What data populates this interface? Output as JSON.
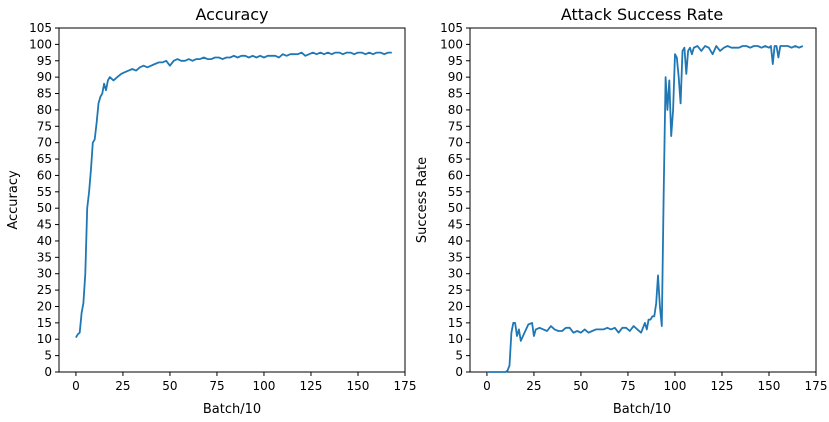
{
  "colors": {
    "line": "#1f77b4",
    "axes": "#000000",
    "background": "#ffffff"
  },
  "chart_data": [
    {
      "type": "line",
      "title": "Accuracy",
      "xlabel": "Batch/10",
      "ylabel": "Accuracy",
      "xlim": [
        -9,
        175
      ],
      "ylim": [
        0,
        105
      ],
      "xticks": [
        "0",
        "25",
        "50",
        "75",
        "100",
        "125",
        "150",
        "175"
      ],
      "yticks": [
        "0",
        "5",
        "10",
        "15",
        "20",
        "25",
        "30",
        "35",
        "40",
        "45",
        "50",
        "55",
        "60",
        "65",
        "70",
        "75",
        "80",
        "85",
        "90",
        "95",
        "100",
        "105"
      ],
      "grid": false,
      "series": [
        {
          "x": [
            0,
            1,
            2,
            3,
            4,
            5,
            6,
            7,
            8,
            9,
            10,
            11,
            12,
            13,
            14,
            15,
            16,
            17,
            18,
            19,
            20,
            22,
            24,
            26,
            28,
            30,
            32,
            34,
            36,
            38,
            40,
            42,
            44,
            46,
            48,
            50,
            52,
            54,
            56,
            58,
            60,
            62,
            64,
            66,
            68,
            70,
            72,
            74,
            76,
            78,
            80,
            82,
            84,
            86,
            88,
            90,
            92,
            94,
            96,
            98,
            100,
            102,
            104,
            106,
            108,
            110,
            112,
            114,
            116,
            118,
            120,
            122,
            124,
            126,
            128,
            130,
            132,
            134,
            136,
            138,
            140,
            142,
            144,
            146,
            148,
            150,
            152,
            154,
            156,
            158,
            160,
            162,
            164,
            166,
            168
          ],
          "y": [
            10.5,
            11.5,
            12,
            18,
            21,
            30,
            50,
            55,
            62,
            70,
            71,
            76,
            82,
            84,
            85,
            88,
            86,
            89,
            90,
            89.5,
            89,
            90,
            91,
            91.5,
            92,
            92.5,
            92,
            93,
            93.5,
            93,
            93.5,
            94,
            94.5,
            94.5,
            95,
            93.5,
            95,
            95.5,
            95,
            95,
            95.5,
            95,
            95.5,
            95.5,
            96,
            95.5,
            95.5,
            96,
            96,
            95.5,
            96,
            96,
            96.5,
            96,
            96.5,
            96.5,
            96,
            96.5,
            96,
            96.5,
            96,
            96.5,
            96.5,
            96.5,
            96,
            97,
            96.5,
            97,
            97,
            97,
            97.5,
            96.5,
            97,
            97.5,
            97,
            97.5,
            97,
            97.5,
            97,
            97.5,
            97.5,
            97,
            97.5,
            97.5,
            97,
            97.5,
            97.5,
            97,
            97.5,
            97,
            97.5,
            97.5,
            97,
            97.5,
            97.5
          ]
        }
      ]
    },
    {
      "type": "line",
      "title": "Attack Success Rate",
      "xlabel": "Batch/10",
      "ylabel": "Success Rate",
      "xlim": [
        -9,
        175
      ],
      "ylim": [
        0,
        105
      ],
      "xticks": [
        "0",
        "25",
        "50",
        "75",
        "100",
        "125",
        "150",
        "175"
      ],
      "yticks": [
        "0",
        "5",
        "10",
        "15",
        "20",
        "25",
        "30",
        "35",
        "40",
        "45",
        "50",
        "55",
        "60",
        "65",
        "70",
        "75",
        "80",
        "85",
        "90",
        "95",
        "100",
        "105"
      ],
      "grid": false,
      "series": [
        {
          "x": [
            0,
            2,
            4,
            6,
            8,
            10,
            11,
            12,
            13,
            14,
            15,
            16,
            17,
            18,
            20,
            22,
            24,
            25,
            26,
            28,
            30,
            32,
            34,
            36,
            38,
            40,
            42,
            44,
            46,
            48,
            50,
            52,
            54,
            56,
            58,
            60,
            62,
            64,
            66,
            68,
            70,
            72,
            74,
            76,
            78,
            80,
            82,
            84,
            85,
            86,
            87,
            88,
            89,
            90,
            91,
            92,
            93,
            94,
            95,
            96,
            97,
            98,
            99,
            100,
            101,
            102,
            103,
            104,
            105,
            106,
            107,
            108,
            109,
            110,
            112,
            114,
            116,
            118,
            120,
            122,
            124,
            126,
            128,
            130,
            132,
            134,
            136,
            138,
            140,
            142,
            144,
            146,
            148,
            150,
            151,
            152,
            153,
            154,
            155,
            156,
            158,
            160,
            162,
            164,
            166,
            168
          ],
          "y": [
            0,
            0,
            0,
            0,
            0,
            0,
            0.5,
            2,
            12,
            15,
            15,
            11,
            13,
            9.5,
            12,
            14.5,
            15,
            11,
            13,
            13.5,
            13,
            12.5,
            14,
            13,
            12.5,
            12.5,
            13.5,
            13.5,
            12,
            12.5,
            12,
            13,
            12,
            12.5,
            13,
            13,
            13,
            13.5,
            13,
            13.5,
            12,
            13.5,
            13.5,
            12.5,
            14,
            13,
            12,
            15,
            13,
            16,
            16,
            17,
            17,
            21,
            29.5,
            20,
            14,
            55,
            90,
            80,
            89,
            72,
            80,
            97,
            96,
            90,
            82,
            98,
            99,
            91,
            98,
            99,
            97,
            99,
            99.5,
            98,
            99.5,
            99,
            97,
            99.5,
            98,
            99,
            99.5,
            99,
            99,
            99,
            99.5,
            99.5,
            99,
            99.5,
            99.5,
            99,
            99.5,
            99,
            99.5,
            94,
            99.5,
            99.5,
            96,
            99.5,
            99.5,
            99.5,
            99,
            99.5,
            99,
            99.5
          ]
        }
      ]
    }
  ]
}
